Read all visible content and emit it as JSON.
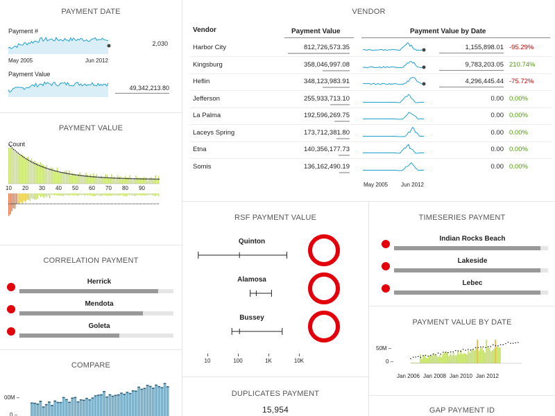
{
  "payment_date": {
    "title": "PAYMENT DATE",
    "count_label": "Payment #",
    "count_value": "2,030",
    "value_label": "Payment Value",
    "value_value": "49,342,213.80",
    "axis_start": "May 2005",
    "axis_end": "Jun 2012"
  },
  "vendor": {
    "title": "VENDOR",
    "col_vendor": "Vendor",
    "col_value": "Payment Value",
    "col_by_date": "Payment Value by Date",
    "axis_start": "May 2005",
    "axis_end": "Jun 2012",
    "rows": [
      {
        "name": "Harbor City",
        "value": "812,726,573.35",
        "last": "1,155,898.01",
        "change": "-95.29%",
        "bar": 0.95
      },
      {
        "name": "Kingsburg",
        "value": "358,046,997.08",
        "last": "9,783,203.05",
        "change": "210.74%",
        "bar": 0.42
      },
      {
        "name": "Heflin",
        "value": "348,123,983.91",
        "last": "4,296,445.44",
        "change": "-75.72%",
        "bar": 0.41
      },
      {
        "name": "Jefferson",
        "value": "255,933,713.10",
        "last": "0.00",
        "change": "0.00%",
        "bar": 0.3
      },
      {
        "name": "La Palma",
        "value": "192,596,269.75",
        "last": "0.00",
        "change": "0.00%",
        "bar": 0.23
      },
      {
        "name": "Laceys Spring",
        "value": "173,712,381.80",
        "last": "0.00",
        "change": "0.00%",
        "bar": 0.2
      },
      {
        "name": "Etna",
        "value": "140,356,177.73",
        "last": "0.00",
        "change": "0.00%",
        "bar": 0.17
      },
      {
        "name": "Somis",
        "value": "136,162,490.19",
        "last": "0.00",
        "change": "0.00%",
        "bar": 0.16
      }
    ]
  },
  "payment_value": {
    "title": "PAYMENT VALUE",
    "count_label": "Count",
    "ticks": [
      "10",
      "20",
      "30",
      "40",
      "50",
      "60",
      "70",
      "80",
      "90"
    ]
  },
  "correlation": {
    "title": "CORRELATION PAYMENT",
    "items": [
      {
        "name": "Herrick",
        "fill": 0.9
      },
      {
        "name": "Mendota",
        "fill": 0.8
      },
      {
        "name": "Goleta",
        "fill": 0.65
      }
    ]
  },
  "compare": {
    "title": "COMPARE",
    "y_label": "00M –",
    "y_zero": "0 –"
  },
  "rsf": {
    "title": "RSF PAYMENT VALUE",
    "items": [
      {
        "name": "Quinton",
        "lo": 0.7,
        "mid": 2.05,
        "hi": 3.6
      },
      {
        "name": "Alamosa",
        "lo": 2.4,
        "mid": 2.6,
        "hi": 3.1
      },
      {
        "name": "Bussey",
        "lo": 1.8,
        "mid": 2.05,
        "hi": 3.45
      }
    ],
    "axis_ticks": [
      "10",
      "100",
      "1K",
      "10K"
    ]
  },
  "duplicates": {
    "title": "DUPLICATES PAYMENT",
    "value": "15,954"
  },
  "timeseries": {
    "title": "TIMESERIES PAYMENT",
    "items": [
      {
        "name": "Indian Rocks Beach",
        "fill": 0.95
      },
      {
        "name": "Lakeside",
        "fill": 0.95
      },
      {
        "name": "Lebec",
        "fill": 0.95
      }
    ]
  },
  "pvbd": {
    "title": "PAYMENT VALUE BY DATE",
    "y_top": "50M –",
    "y_zero": "0 –",
    "ticks": [
      "Jan 2006",
      "Jan 2008",
      "Jan 2010",
      "Jan 2012"
    ]
  },
  "gap": {
    "title": "GAP PAYMENT ID"
  },
  "colors": {
    "spark": "#1f9fd1",
    "spark_fill": "#d9eef7",
    "green_bar": "#c5e06a",
    "red_bar": "#e3000b",
    "compare_bar": "#7fb3cc"
  }
}
